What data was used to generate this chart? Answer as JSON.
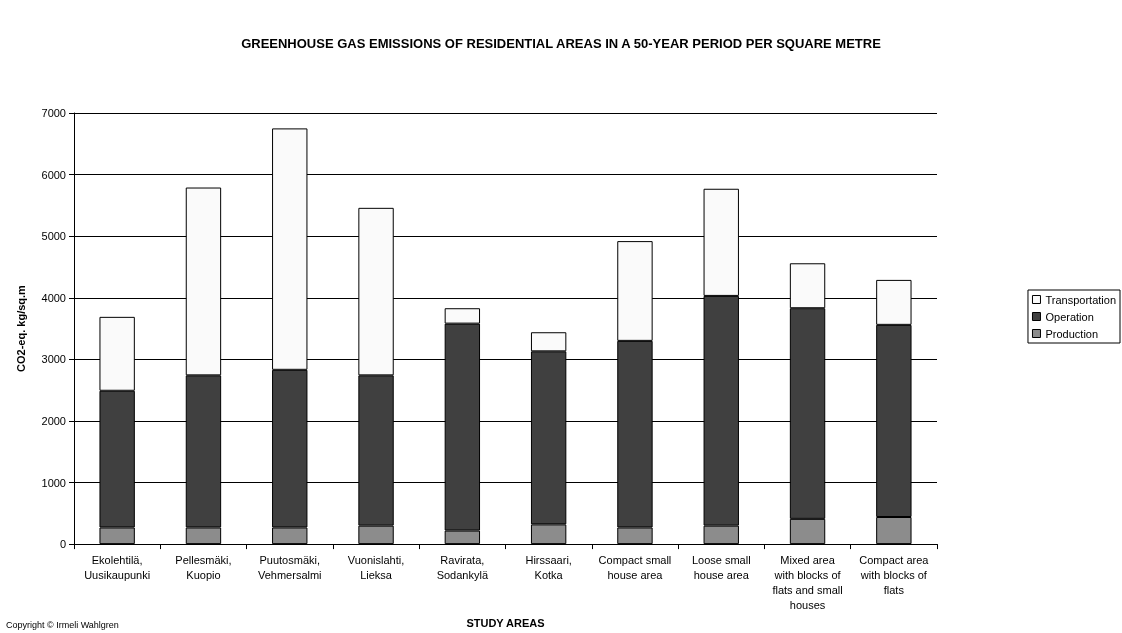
{
  "chart_data": {
    "type": "bar",
    "title": "GREENHOUSE GAS EMISSIONS OF RESIDENTIAL AREAS IN A 50-YEAR PERIOD PER SQUARE METRE",
    "xlabel": "STUDY AREAS",
    "ylabel": "CO2-eq. kg/sq.m",
    "categories": [
      "Ekolehtilä,\nUusikaupunki",
      "Pellesmäki,\nKuopio",
      "Puutosmäki,\nVehmersalmi",
      "Vuonislahti,\nLieksa",
      "Ravirata,\nSodankylä",
      "Hirssaari,\nKotka",
      "Compact small\nhouse area",
      "Loose small\nhouse area",
      "Mixed area\nwith blocks of\nflats and small\nhouses",
      "Compact area\nwith blocks of\nflats"
    ],
    "series": [
      {
        "name": "Production",
        "color": "#8c8c8c",
        "values": [
          270,
          270,
          270,
          300,
          220,
          320,
          270,
          300,
          410,
          440
        ]
      },
      {
        "name": "Operation",
        "color": "#404040",
        "values": [
          2220,
          2470,
          2560,
          2440,
          3360,
          2810,
          3030,
          3730,
          3420,
          3120
        ]
      },
      {
        "name": "Transportation",
        "color": "#fafafa",
        "values": [
          1200,
          3050,
          3920,
          2720,
          250,
          310,
          1620,
          1740,
          730,
          730
        ]
      }
    ],
    "stacked": true,
    "ylim": [
      0,
      7000
    ],
    "yticks": [
      0,
      1000,
      2000,
      3000,
      4000,
      5000,
      6000,
      7000
    ],
    "grid": "y",
    "legend": "right",
    "annotations": [
      "Copyright © Irmeli Wahlgren"
    ]
  }
}
